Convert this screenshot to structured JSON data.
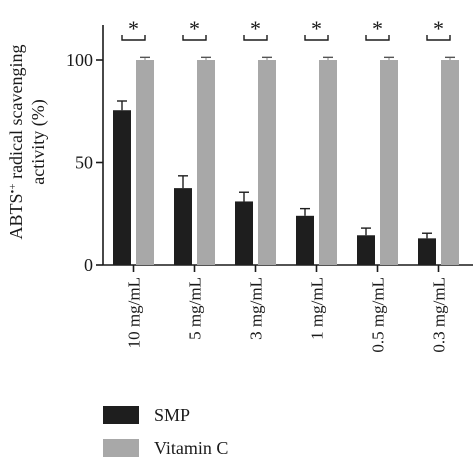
{
  "chart_data": {
    "type": "bar",
    "ylabel_line1": "ABTS",
    "ylabel_superscript": "•+",
    "ylabel_line1_rest": " radical scavenging",
    "ylabel_line2": "activity (%)",
    "xlabel": "",
    "ylim": [
      0,
      120
    ],
    "yticks": [
      0,
      50,
      100
    ],
    "grid": false,
    "legend_position": "bottom",
    "categories": [
      "10 mg/mL",
      "5 mg/mL",
      "3 mg/mL",
      "1 mg/mL",
      "0.5 mg/mL",
      "0.3 mg/mL"
    ],
    "series": [
      {
        "name": "SMP",
        "color": "#1e1e1e",
        "values": [
          75.5,
          37.5,
          31,
          24,
          14.5,
          13
        ],
        "errors": [
          4.5,
          6,
          4.5,
          3.5,
          3.5,
          2.5
        ]
      },
      {
        "name": "Vitamin C",
        "color": "#a8a8a8",
        "values": [
          100,
          100,
          100,
          100,
          100,
          100
        ],
        "errors": [
          1.3,
          1.3,
          1.3,
          1.3,
          1.3,
          1.3
        ]
      }
    ],
    "significance_marker": "*"
  }
}
